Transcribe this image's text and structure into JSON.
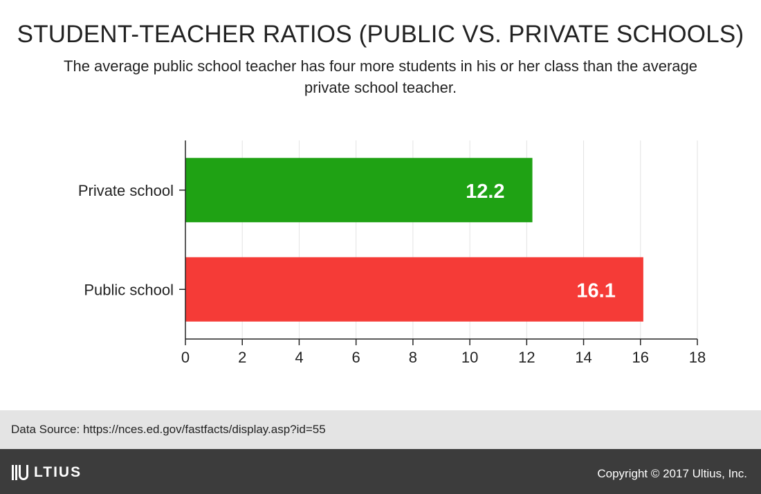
{
  "chart_data": {
    "type": "bar",
    "orientation": "horizontal",
    "title": "STUDENT-TEACHER RATIOS (PUBLIC VS. PRIVATE SCHOOLS)",
    "subtitle": "The average public school teacher has four more students in his or her class than the average private school teacher.",
    "categories": [
      "Private school",
      "Public school"
    ],
    "values": [
      12.2,
      16.1
    ],
    "data_labels": [
      "12.2",
      "16.1"
    ],
    "colors": [
      "#1fa214",
      "#f53b37"
    ],
    "xlim": [
      0,
      18
    ],
    "xticks": [
      0,
      2,
      4,
      6,
      8,
      10,
      12,
      14,
      16,
      18
    ],
    "grid": true,
    "legend": "none"
  },
  "source": {
    "text": "Data Source: https://nces.ed.gov/fastfacts/display.asp?id=55"
  },
  "footer": {
    "logo_text": "LTIUS",
    "copyright": "Copyright © 2017 Ultius, Inc."
  }
}
